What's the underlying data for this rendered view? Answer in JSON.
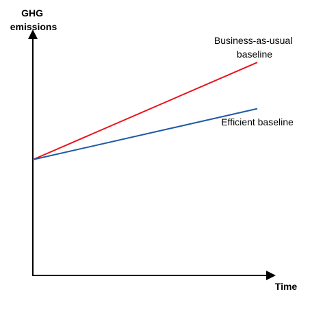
{
  "chart_data": {
    "type": "line",
    "ylabel": [
      "GHG",
      "emissions"
    ],
    "xlabel": "Time",
    "x": [
      0,
      1
    ],
    "ylim": [
      0,
      1
    ],
    "xlim": [
      0,
      1
    ],
    "grid": false,
    "legend": "inline",
    "series": [
      {
        "name": "Business-as-usual baseline",
        "label_lines": [
          "Business-as-usual",
          "baseline"
        ],
        "color": "#e8141b",
        "values": [
          0.5,
          0.92
        ]
      },
      {
        "name": "Efficient baseline",
        "label_lines": [
          "Efficient baseline"
        ],
        "color": "#1f5aa6",
        "values": [
          0.5,
          0.72
        ]
      }
    ]
  }
}
